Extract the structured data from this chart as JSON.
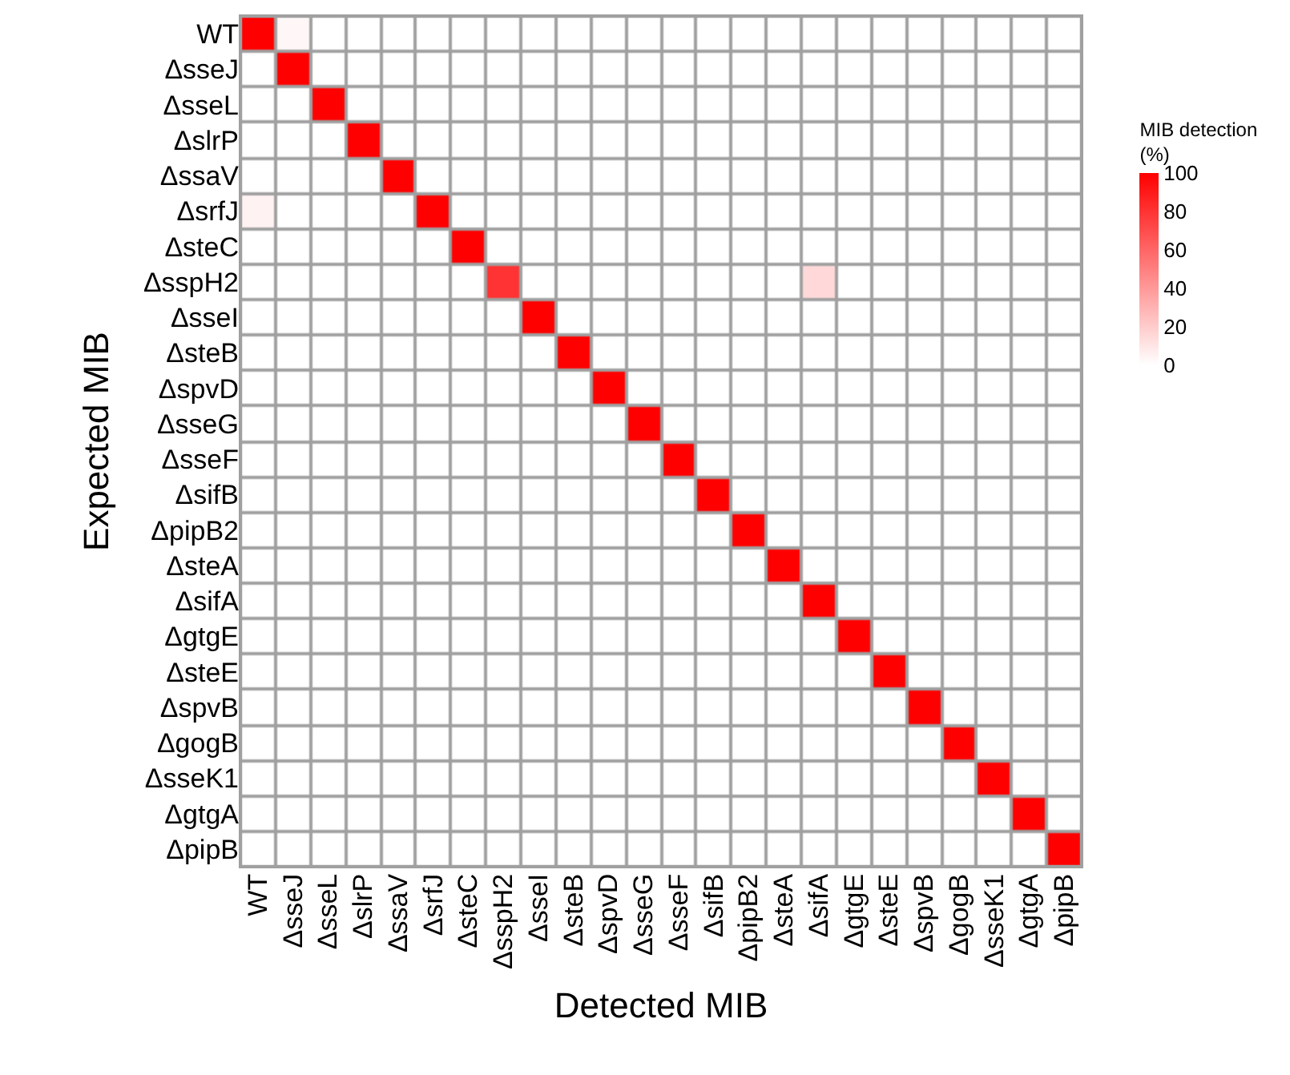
{
  "chart_data": {
    "type": "heatmap",
    "xlabel": "Detected MIB",
    "ylabel": "Expected MIB",
    "clabel": "MIB detection\n(%)",
    "categories": [
      "WT",
      "ΔsseJ",
      "ΔsseL",
      "ΔslrP",
      "ΔssaV",
      "ΔsrfJ",
      "ΔsteC",
      "ΔsspH2",
      "ΔsseI",
      "ΔsteB",
      "ΔspvD",
      "ΔsseG",
      "ΔsseF",
      "ΔsifB",
      "ΔpipB2",
      "ΔsteA",
      "ΔsifA",
      "ΔgtgE",
      "ΔsteE",
      "ΔspvB",
      "ΔgogB",
      "ΔsseK1",
      "ΔgtgA",
      "ΔpipB"
    ],
    "y_categories": [
      "WT",
      "ΔsseJ",
      "ΔsseL",
      "ΔslrP",
      "ΔssaV",
      "ΔsrfJ",
      "ΔsteC",
      "ΔsspH2",
      "ΔsseI",
      "ΔsteB",
      "ΔspvD",
      "ΔsseG",
      "ΔsseF",
      "ΔsifB",
      "ΔpipB2",
      "ΔsteA",
      "ΔsifA",
      "ΔgtgE",
      "ΔsteE",
      "ΔspvB",
      "ΔgogB",
      "ΔsseK1",
      "ΔgtgA",
      "ΔpipB"
    ],
    "cells": [
      [
        100,
        3,
        0,
        0,
        0,
        0,
        0,
        0,
        0,
        0,
        0,
        0,
        0,
        0,
        0,
        0,
        0,
        0,
        0,
        0,
        0,
        0,
        0,
        0
      ],
      [
        0,
        100,
        0,
        0,
        0,
        0,
        0,
        0,
        0,
        0,
        0,
        0,
        0,
        0,
        0,
        0,
        0,
        0,
        0,
        0,
        0,
        0,
        0,
        0
      ],
      [
        0,
        0,
        100,
        0,
        0,
        0,
        0,
        0,
        0,
        0,
        0,
        0,
        0,
        0,
        0,
        0,
        0,
        0,
        0,
        0,
        0,
        0,
        0,
        0
      ],
      [
        0,
        0,
        0,
        100,
        0,
        0,
        0,
        0,
        0,
        0,
        0,
        0,
        0,
        0,
        0,
        0,
        0,
        0,
        0,
        0,
        0,
        0,
        0,
        0
      ],
      [
        0,
        0,
        0,
        0,
        100,
        0,
        0,
        0,
        0,
        0,
        0,
        0,
        0,
        0,
        0,
        0,
        0,
        0,
        0,
        0,
        0,
        0,
        0,
        0
      ],
      [
        5,
        0,
        0,
        0,
        0,
        100,
        0,
        0,
        0,
        0,
        0,
        0,
        0,
        0,
        0,
        0,
        0,
        0,
        0,
        0,
        0,
        0,
        0,
        0
      ],
      [
        0,
        0,
        0,
        0,
        0,
        0,
        100,
        0,
        0,
        0,
        0,
        0,
        0,
        0,
        0,
        0,
        0,
        0,
        0,
        0,
        0,
        0,
        0,
        0
      ],
      [
        0,
        0,
        0,
        0,
        0,
        0,
        0,
        80,
        0,
        0,
        0,
        0,
        0,
        0,
        0,
        0,
        15,
        0,
        0,
        0,
        0,
        0,
        0,
        0
      ],
      [
        0,
        0,
        0,
        0,
        0,
        0,
        0,
        0,
        100,
        0,
        0,
        0,
        0,
        0,
        0,
        0,
        0,
        0,
        0,
        0,
        0,
        0,
        0,
        0
      ],
      [
        0,
        0,
        0,
        0,
        0,
        0,
        0,
        0,
        0,
        100,
        0,
        0,
        0,
        0,
        0,
        0,
        0,
        0,
        0,
        0,
        0,
        0,
        0,
        0
      ],
      [
        0,
        0,
        0,
        0,
        0,
        0,
        0,
        0,
        0,
        0,
        100,
        0,
        0,
        0,
        0,
        0,
        0,
        0,
        0,
        0,
        0,
        0,
        0,
        0
      ],
      [
        0,
        0,
        0,
        0,
        0,
        0,
        0,
        0,
        0,
        0,
        0,
        100,
        0,
        0,
        0,
        0,
        0,
        0,
        0,
        0,
        0,
        0,
        0,
        0
      ],
      [
        0,
        0,
        0,
        0,
        0,
        0,
        0,
        0,
        0,
        0,
        0,
        0,
        100,
        0,
        0,
        0,
        0,
        0,
        0,
        0,
        0,
        0,
        0,
        0
      ],
      [
        0,
        0,
        0,
        0,
        0,
        0,
        0,
        0,
        0,
        0,
        0,
        0,
        0,
        100,
        0,
        0,
        0,
        0,
        0,
        0,
        0,
        0,
        0,
        0
      ],
      [
        0,
        0,
        0,
        0,
        0,
        0,
        0,
        0,
        0,
        0,
        0,
        0,
        0,
        0,
        100,
        0,
        0,
        0,
        0,
        0,
        0,
        0,
        0,
        0
      ],
      [
        0,
        0,
        0,
        0,
        0,
        0,
        0,
        0,
        0,
        0,
        0,
        0,
        0,
        0,
        0,
        100,
        0,
        0,
        0,
        0,
        0,
        0,
        0,
        0
      ],
      [
        0,
        0,
        0,
        0,
        0,
        0,
        0,
        0,
        0,
        0,
        0,
        0,
        0,
        0,
        0,
        0,
        100,
        0,
        0,
        0,
        0,
        0,
        0,
        0
      ],
      [
        0,
        0,
        0,
        0,
        0,
        0,
        0,
        0,
        0,
        0,
        0,
        0,
        0,
        0,
        0,
        0,
        0,
        100,
        0,
        0,
        0,
        0,
        0,
        0
      ],
      [
        0,
        0,
        0,
        0,
        0,
        0,
        0,
        0,
        0,
        0,
        0,
        0,
        0,
        0,
        0,
        0,
        0,
        0,
        100,
        0,
        0,
        0,
        0,
        0
      ],
      [
        0,
        0,
        0,
        0,
        0,
        0,
        0,
        0,
        0,
        0,
        0,
        0,
        0,
        0,
        0,
        0,
        0,
        0,
        0,
        100,
        0,
        0,
        0,
        0
      ],
      [
        0,
        0,
        0,
        0,
        0,
        0,
        0,
        0,
        0,
        0,
        0,
        0,
        0,
        0,
        0,
        0,
        0,
        0,
        0,
        0,
        100,
        0,
        0,
        0
      ],
      [
        0,
        0,
        0,
        0,
        0,
        0,
        0,
        0,
        0,
        0,
        0,
        0,
        0,
        0,
        0,
        0,
        0,
        0,
        0,
        0,
        0,
        100,
        0,
        0
      ],
      [
        0,
        0,
        0,
        0,
        0,
        0,
        0,
        0,
        0,
        0,
        0,
        0,
        0,
        0,
        0,
        0,
        0,
        0,
        0,
        0,
        0,
        0,
        100,
        0
      ],
      [
        0,
        0,
        0,
        0,
        0,
        0,
        0,
        0,
        0,
        0,
        0,
        0,
        0,
        0,
        0,
        0,
        0,
        0,
        0,
        0,
        0,
        0,
        0,
        100
      ]
    ],
    "clim": [
      0,
      100
    ],
    "cticks": [
      0,
      20,
      40,
      60,
      80,
      100
    ],
    "colors": [
      "#ffffff",
      "#ff0000"
    ]
  }
}
